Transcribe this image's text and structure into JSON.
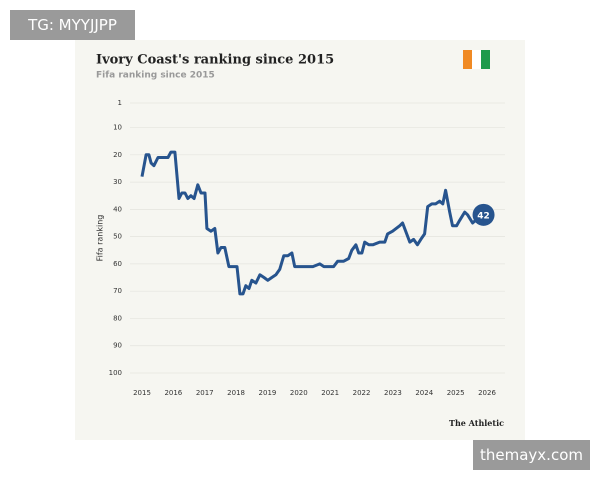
{
  "watermark_top": "TG: MYYJJPP",
  "watermark_bottom": "themayx.com",
  "chart_data": {
    "type": "line",
    "title": "Ivory Coast's ranking since 2015",
    "subtitle": "Fifa ranking since 2015",
    "y_label": "Fifa ranking",
    "source": "The Athletic",
    "color": "#27548e",
    "y_inverted": true,
    "grid": true,
    "x": [
      2015.0,
      2015.13,
      2015.22,
      2015.29,
      2015.38,
      2015.51,
      2015.7,
      2015.83,
      2015.92,
      2016.05,
      2016.18,
      2016.27,
      2016.37,
      2016.46,
      2016.56,
      2016.66,
      2016.78,
      2016.88,
      2017.01,
      2017.07,
      2017.2,
      2017.32,
      2017.42,
      2017.52,
      2017.64,
      2017.77,
      2018.03,
      2018.12,
      2018.22,
      2018.31,
      2018.41,
      2018.5,
      2018.63,
      2018.76,
      2018.89,
      2019.01,
      2019.14,
      2019.27,
      2019.39,
      2019.52,
      2019.65,
      2019.78,
      2019.87,
      2020.45,
      2020.67,
      2020.8,
      2021.11,
      2021.24,
      2021.43,
      2021.59,
      2021.69,
      2021.82,
      2021.91,
      2022.01,
      2022.1,
      2022.23,
      2022.36,
      2022.58,
      2022.74,
      2022.83,
      2022.99,
      2023.22,
      2023.31,
      2023.44,
      2023.54,
      2023.66,
      2023.78,
      2023.89,
      2024.01,
      2024.11,
      2024.24,
      2024.36,
      2024.49,
      2024.59,
      2024.68,
      2024.81,
      2024.9,
      2025.03,
      2025.13,
      2025.29,
      2025.38,
      2025.54,
      2025.64,
      2025.76,
      2025.89
    ],
    "values": [
      28,
      20,
      20,
      23,
      24,
      21,
      21,
      21,
      19,
      19,
      36,
      34,
      34,
      36,
      35,
      36,
      31,
      34,
      34,
      47,
      48,
      47,
      56,
      54,
      54,
      61,
      61,
      71,
      71,
      68,
      69,
      66,
      67,
      64,
      65,
      66,
      65,
      64,
      62,
      57,
      57,
      56,
      61,
      61,
      60,
      61,
      61,
      59,
      59,
      58,
      55,
      53,
      56,
      56,
      52,
      53,
      53,
      52,
      52,
      49,
      48,
      46,
      45,
      49,
      52,
      51,
      53,
      51,
      49,
      39,
      38,
      38,
      37,
      38,
      33,
      41,
      46,
      46,
      44,
      41,
      42,
      45,
      44,
      44,
      42
    ],
    "xlim": [
      2015,
      2026
    ],
    "xticks": [
      2015,
      2016,
      2017,
      2018,
      2019,
      2020,
      2021,
      2022,
      2023,
      2024,
      2025,
      2026
    ],
    "ylim": [
      1,
      100
    ],
    "yticks": [
      1,
      10,
      20,
      30,
      40,
      50,
      60,
      70,
      80,
      90,
      100
    ]
  }
}
